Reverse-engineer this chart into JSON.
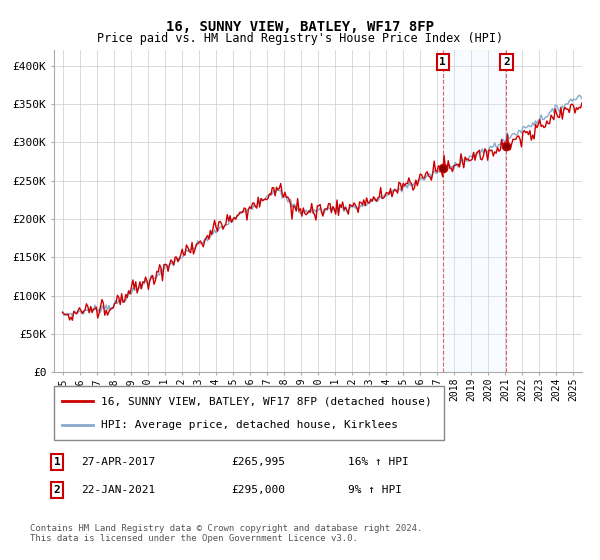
{
  "title": "16, SUNNY VIEW, BATLEY, WF17 8FP",
  "subtitle": "Price paid vs. HM Land Registry's House Price Index (HPI)",
  "legend_line1": "16, SUNNY VIEW, BATLEY, WF17 8FP (detached house)",
  "legend_line2": "HPI: Average price, detached house, Kirklees",
  "annotation1_label": "1",
  "annotation1_date": "27-APR-2017",
  "annotation1_price": "£265,995",
  "annotation1_hpi": "16% ↑ HPI",
  "annotation1_year": 2017.32,
  "annotation1_value": 265995,
  "annotation2_label": "2",
  "annotation2_date": "22-JAN-2021",
  "annotation2_price": "£295,000",
  "annotation2_hpi": "9% ↑ HPI",
  "annotation2_year": 2021.06,
  "annotation2_value": 295000,
  "sale_color": "#cc0000",
  "hpi_color": "#88aacc",
  "background_color": "#ffffff",
  "grid_color": "#cccccc",
  "annotation_box_color": "#cc0000",
  "highlight_color": "#ddeeff",
  "footer": "Contains HM Land Registry data © Crown copyright and database right 2024.\nThis data is licensed under the Open Government Licence v3.0.",
  "ylim": [
    0,
    420000
  ],
  "yticks": [
    0,
    50000,
    100000,
    150000,
    200000,
    250000,
    300000,
    350000,
    400000
  ],
  "ytick_labels": [
    "£0",
    "£50K",
    "£100K",
    "£150K",
    "£200K",
    "£250K",
    "£300K",
    "£350K",
    "£400K"
  ],
  "xlim": [
    1994.5,
    2025.5
  ],
  "xtick_years": [
    1995,
    1996,
    1997,
    1998,
    1999,
    2000,
    2001,
    2002,
    2003,
    2004,
    2005,
    2006,
    2007,
    2008,
    2009,
    2010,
    2011,
    2012,
    2013,
    2014,
    2015,
    2016,
    2017,
    2018,
    2019,
    2020,
    2021,
    2022,
    2023,
    2024,
    2025
  ]
}
